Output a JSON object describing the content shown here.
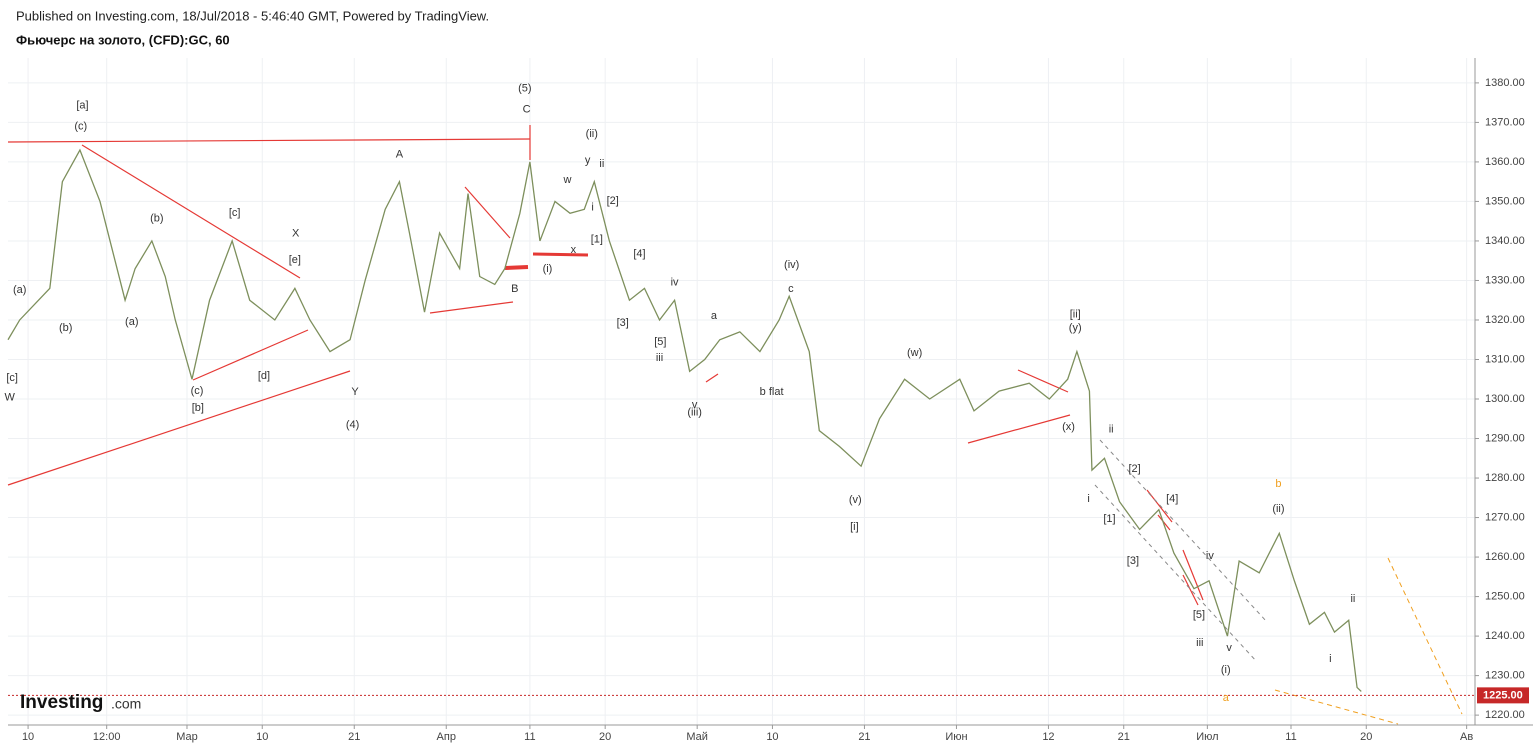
{
  "header": {
    "published": "Published on Investing.com, 18/Jul/2018 - 5:46:40 GMT, Powered by TradingView.",
    "symbol": "Фьючерс на золото, (CFD):GC, 60"
  },
  "logo": {
    "brand": "Investing",
    "suffix": ".com"
  },
  "chart_data": {
    "type": "line",
    "color": "#7d8f5c",
    "grid": true,
    "x": [
      6.6,
      8.0,
      11.6,
      13.1,
      15.2,
      17.6,
      18.8,
      20.6,
      21.8,
      23.8,
      25.4,
      26.6,
      28.6,
      30.7,
      33.4,
      35.5,
      38.5,
      40.9,
      42.7,
      45.1,
      47.5,
      49.3,
      51.7,
      53.4,
      54.6,
      56.4,
      58.2,
      60.6,
      61.6,
      63.0,
      64.8,
      66.0,
      67.8,
      69.0,
      70.2,
      72.0,
      73.8,
      75.5,
      76.7,
      78.5,
      80.9,
      82.7,
      84.5,
      86.3,
      88.1,
      89.9,
      91.7,
      94.1,
      96.5,
      98.8,
      100.0,
      102.4,
      103.6,
      106.0,
      108.6,
      110.8,
      113.8,
      116.8,
      120.4,
      122.1,
      125.1,
      128.7,
      131.1,
      133.3,
      134.4,
      135.9,
      136.2,
      137.7,
      139.5,
      141.9,
      144.2,
      146.0,
      148.4,
      150.2,
      152.4,
      153.8,
      156.2,
      158.6,
      160.4,
      162.2,
      164.0,
      165.2,
      166.9,
      167.9,
      168.4
    ],
    "series": [
      {
        "values": [
          1315,
          1320,
          1328,
          1355,
          1363,
          1350,
          1340,
          1325,
          1333,
          1340,
          1331,
          1320,
          1305,
          1325,
          1340,
          1325,
          1320,
          1328,
          1320,
          1312,
          1315,
          1330,
          1348,
          1355,
          1342,
          1322,
          1342,
          1333,
          1352,
          1331,
          1329,
          1333,
          1347,
          1360,
          1340,
          1350,
          1347,
          1348,
          1355,
          1340,
          1325,
          1328,
          1320,
          1325,
          1307,
          1310,
          1315,
          1317,
          1312,
          1320,
          1326,
          1312,
          1292,
          1288,
          1283,
          1295,
          1305,
          1300,
          1305,
          1297,
          1302,
          1304,
          1300,
          1305,
          1312,
          1302,
          1282,
          1285,
          1274,
          1267,
          1272,
          1261,
          1252,
          1254,
          1240,
          1259,
          1256,
          1266,
          1254,
          1243,
          1246,
          1241,
          1244,
          1227,
          1226
        ]
      }
    ],
    "xlim": [
      6.6,
      182
    ],
    "xticks": [
      {
        "value": 9,
        "label": "10"
      },
      {
        "value": 18.4,
        "label": "12:00"
      },
      {
        "value": 28,
        "label": "Мар"
      },
      {
        "value": 37,
        "label": "10"
      },
      {
        "value": 48,
        "label": "21"
      },
      {
        "value": 59,
        "label": "Апр"
      },
      {
        "value": 69,
        "label": "11"
      },
      {
        "value": 78,
        "label": "20"
      },
      {
        "value": 89,
        "label": "Май"
      },
      {
        "value": 98,
        "label": "10"
      },
      {
        "value": 109,
        "label": "21"
      },
      {
        "value": 120,
        "label": "Июн"
      },
      {
        "value": 131,
        "label": "12"
      },
      {
        "value": 140,
        "label": "21"
      },
      {
        "value": 150,
        "label": "Июл"
      },
      {
        "value": 160,
        "label": "11"
      },
      {
        "value": 169,
        "label": "20"
      },
      {
        "value": 181,
        "label": "Ав"
      }
    ],
    "ylim": [
      1217.5,
      1386.3
    ],
    "yticks": [
      {
        "value": 1220,
        "label": "1220.00"
      },
      {
        "value": 1230,
        "label": "1230.00"
      },
      {
        "value": 1240,
        "label": "1240.00"
      },
      {
        "value": 1250,
        "label": "1250.00"
      },
      {
        "value": 1260,
        "label": "1260.00"
      },
      {
        "value": 1270,
        "label": "1270.00"
      },
      {
        "value": 1280,
        "label": "1280.00"
      },
      {
        "value": 1290,
        "label": "1290.00"
      },
      {
        "value": 1300,
        "label": "1300.00"
      },
      {
        "value": 1310,
        "label": "1310.00"
      },
      {
        "value": 1320,
        "label": "1320.00"
      },
      {
        "value": 1330,
        "label": "1330.00"
      },
      {
        "value": 1340,
        "label": "1340.00"
      },
      {
        "value": 1350,
        "label": "1350.00"
      },
      {
        "value": 1360,
        "label": "1360.00"
      },
      {
        "value": 1370,
        "label": "1370.00"
      },
      {
        "value": 1380,
        "label": "1380.00"
      }
    ],
    "last_price": {
      "value": 1225,
      "label": "1225.00",
      "color": "#c62828"
    },
    "annotations": [
      {
        "text": "(5)",
        "x": 68.4,
        "y": 1378.5
      },
      {
        "text": "C",
        "x": 68.6,
        "y": 1373.2
      },
      {
        "text": "[a]",
        "x": 15.5,
        "y": 1374.2
      },
      {
        "text": "(c)",
        "x": 15.3,
        "y": 1368.9
      },
      {
        "text": "(a)",
        "x": 8.0,
        "y": 1327.6
      },
      {
        "text": "(b)",
        "x": 13.5,
        "y": 1318.0
      },
      {
        "text": "(a)",
        "x": 21.4,
        "y": 1319.5
      },
      {
        "text": "(b)",
        "x": 24.4,
        "y": 1345.6
      },
      {
        "text": "(c)",
        "x": 29.2,
        "y": 1302.0
      },
      {
        "text": "[b]",
        "x": 29.3,
        "y": 1297.7
      },
      {
        "text": "[c]",
        "x": 33.7,
        "y": 1347.1
      },
      {
        "text": "[d]",
        "x": 37.2,
        "y": 1305.8
      },
      {
        "text": "X",
        "x": 41.0,
        "y": 1341.8
      },
      {
        "text": "[e]",
        "x": 40.9,
        "y": 1335.2
      },
      {
        "text": "Y",
        "x": 48.1,
        "y": 1301.8
      },
      {
        "text": "(4)",
        "x": 47.8,
        "y": 1293.4
      },
      {
        "text": "A",
        "x": 53.4,
        "y": 1361.8
      },
      {
        "text": "B",
        "x": 67.2,
        "y": 1327.8
      },
      {
        "text": "(i)",
        "x": 71.1,
        "y": 1332.9
      },
      {
        "text": "(ii)",
        "x": 76.4,
        "y": 1367.1
      },
      {
        "text": "y",
        "x": 75.9,
        "y": 1360.3
      },
      {
        "text": "ii",
        "x": 77.6,
        "y": 1359.5
      },
      {
        "text": "w",
        "x": 73.5,
        "y": 1355.4
      },
      {
        "text": "x",
        "x": 74.2,
        "y": 1337.7
      },
      {
        "text": "i",
        "x": 76.5,
        "y": 1348.4
      },
      {
        "text": "[2]",
        "x": 78.9,
        "y": 1350.1
      },
      {
        "text": "[1]",
        "x": 77.0,
        "y": 1340.3
      },
      {
        "text": "[4]",
        "x": 82.1,
        "y": 1336.7
      },
      {
        "text": "[3]",
        "x": 80.1,
        "y": 1319.2
      },
      {
        "text": "[5]",
        "x": 84.6,
        "y": 1314.4
      },
      {
        "text": "iii",
        "x": 84.5,
        "y": 1310.4
      },
      {
        "text": "iv",
        "x": 86.3,
        "y": 1329.4
      },
      {
        "text": "a",
        "x": 91.0,
        "y": 1321.0
      },
      {
        "text": "v",
        "x": 88.7,
        "y": 1298.5
      },
      {
        "text": "(iii)",
        "x": 88.7,
        "y": 1296.5
      },
      {
        "text": "b flat",
        "x": 97.9,
        "y": 1301.8
      },
      {
        "text": "(iv)",
        "x": 100.3,
        "y": 1333.9
      },
      {
        "text": "c",
        "x": 100.2,
        "y": 1327.8
      },
      {
        "text": "(w)",
        "x": 115.0,
        "y": 1311.6
      },
      {
        "text": "(v)",
        "x": 107.9,
        "y": 1274.4
      },
      {
        "text": "[i]",
        "x": 107.8,
        "y": 1267.6
      },
      {
        "text": "[ii]",
        "x": 134.2,
        "y": 1321.3
      },
      {
        "text": "(y)",
        "x": 134.2,
        "y": 1318.0
      },
      {
        "text": "(x)",
        "x": 133.4,
        "y": 1292.9
      },
      {
        "text": "ii",
        "x": 138.5,
        "y": 1292.2
      },
      {
        "text": "i",
        "x": 135.8,
        "y": 1274.7
      },
      {
        "text": "[1]",
        "x": 138.3,
        "y": 1269.6
      },
      {
        "text": "[2]",
        "x": 141.3,
        "y": 1282.3
      },
      {
        "text": "[3]",
        "x": 141.1,
        "y": 1259.0
      },
      {
        "text": "[4]",
        "x": 145.8,
        "y": 1274.7
      },
      {
        "text": "[5]",
        "x": 149.0,
        "y": 1245.3
      },
      {
        "text": "iv",
        "x": 150.3,
        "y": 1260.3
      },
      {
        "text": "iii",
        "x": 149.1,
        "y": 1238.2
      },
      {
        "text": "v",
        "x": 152.6,
        "y": 1237.0
      },
      {
        "text": "(i)",
        "x": 152.2,
        "y": 1231.4
      },
      {
        "text": "b",
        "x": 158.5,
        "y": 1278.5,
        "color": "#f0a020"
      },
      {
        "text": "(ii)",
        "x": 158.5,
        "y": 1272.2
      },
      {
        "text": "ii",
        "x": 167.4,
        "y": 1249.4
      },
      {
        "text": "i",
        "x": 164.7,
        "y": 1234.2
      },
      {
        "text": "a",
        "x": 152.2,
        "y": 1224.3,
        "color": "#f0a020"
      },
      {
        "text": "[c]",
        "x": 7.1,
        "y": 1305.3
      },
      {
        "text": "W",
        "x": 6.8,
        "y": 1300.3
      }
    ]
  }
}
